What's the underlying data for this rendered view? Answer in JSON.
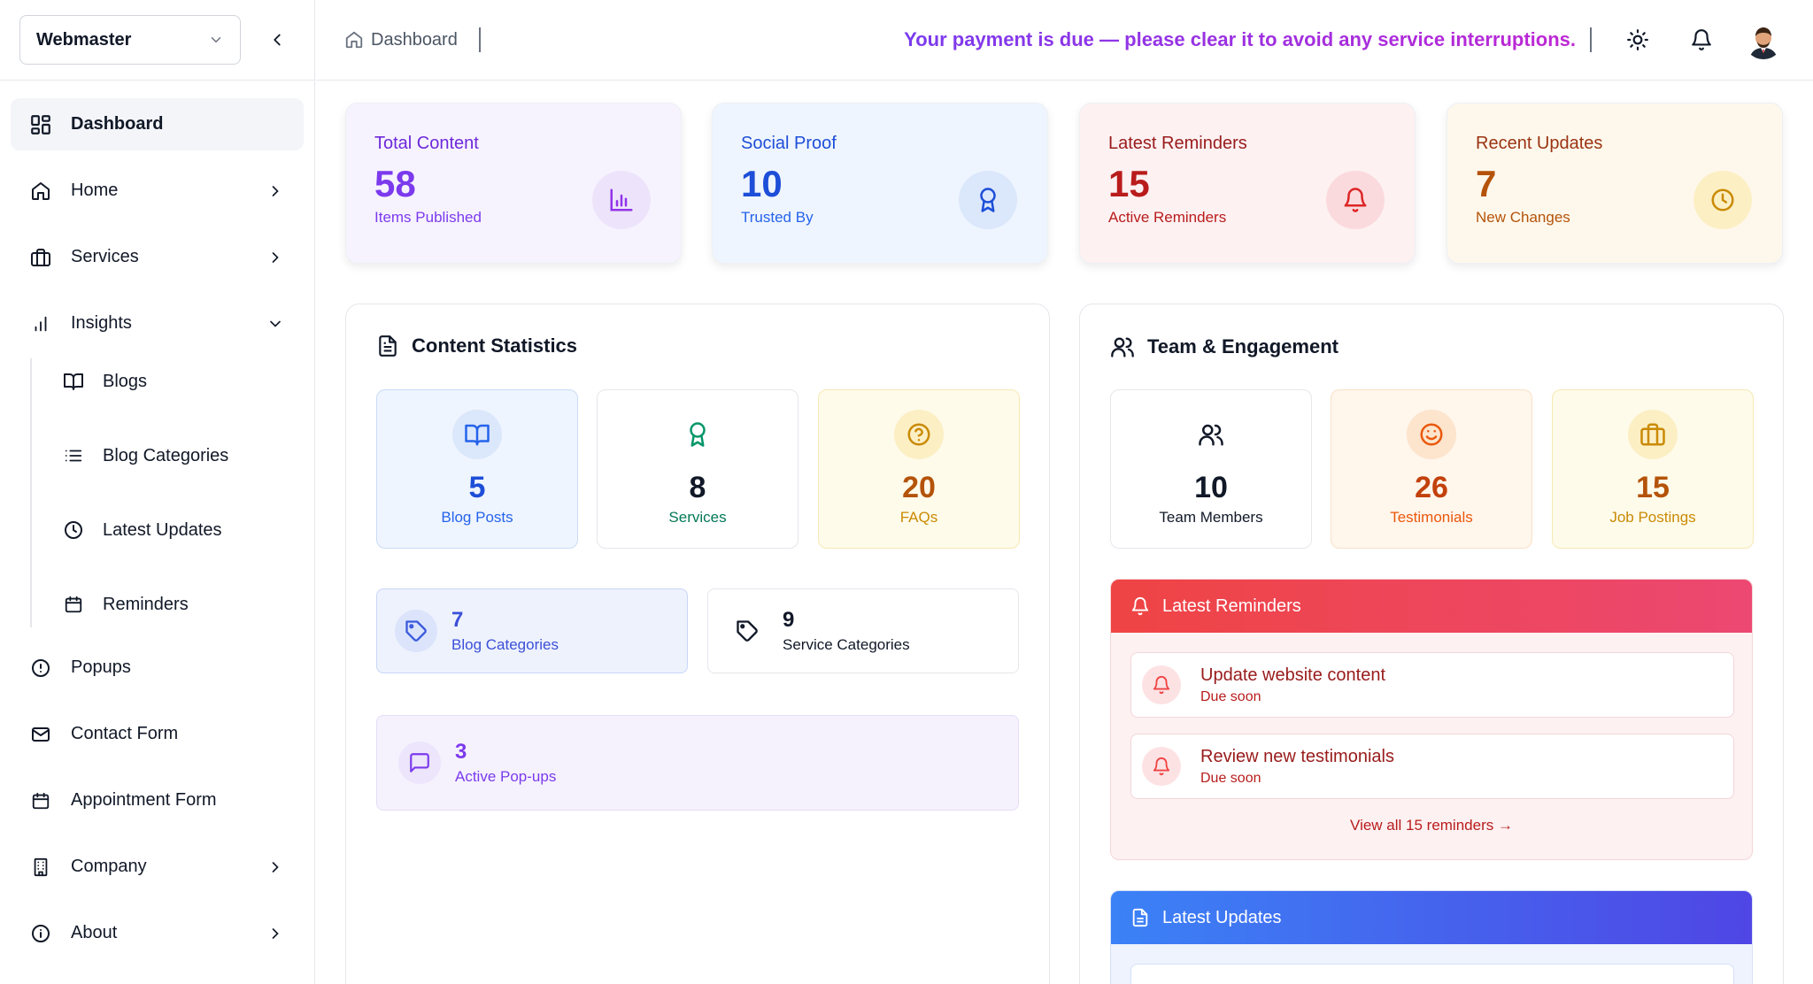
{
  "sidebar": {
    "workspace": "Webmaster",
    "items": [
      {
        "label": "Dashboard",
        "icon": "dashboard-grid-icon"
      },
      {
        "label": "Home",
        "icon": "home-icon"
      },
      {
        "label": "Services",
        "icon": "briefcase-icon"
      },
      {
        "label": "Insights",
        "icon": "bar-chart-icon"
      },
      {
        "label": "Popups",
        "icon": "alert-circle-icon"
      },
      {
        "label": "Contact Form",
        "icon": "mail-icon"
      },
      {
        "label": "Appointment Form",
        "icon": "calendar-icon"
      },
      {
        "label": "Company",
        "icon": "building-icon"
      },
      {
        "label": "About",
        "icon": "info-icon"
      }
    ],
    "insights_sub": [
      {
        "label": "Blogs",
        "icon": "book-icon"
      },
      {
        "label": "Blog Categories",
        "icon": "list-icon"
      },
      {
        "label": "Latest Updates",
        "icon": "clock-icon"
      },
      {
        "label": "Reminders",
        "icon": "calendar-icon"
      }
    ]
  },
  "header": {
    "breadcrumb": "Dashboard",
    "banner": "Your payment is due — please clear it to avoid any service interruptions."
  },
  "stats": [
    {
      "title": "Total Content",
      "value": "58",
      "sub": "Items Published",
      "color": "#7c3aed"
    },
    {
      "title": "Social Proof",
      "value": "10",
      "sub": "Trusted By",
      "color": "#1d4ed8"
    },
    {
      "title": "Latest Reminders",
      "value": "15",
      "sub": "Active Reminders",
      "color": "#b91c1c"
    },
    {
      "title": "Recent Updates",
      "value": "7",
      "sub": "New Changes",
      "color": "#b45309"
    }
  ],
  "content_stats": {
    "title": "Content Statistics",
    "tiles": [
      {
        "value": "5",
        "label": "Blog Posts"
      },
      {
        "value": "8",
        "label": "Services"
      },
      {
        "value": "20",
        "label": "FAQs"
      }
    ],
    "wide": [
      {
        "value": "7",
        "label": "Blog Categories"
      },
      {
        "value": "9",
        "label": "Service Categories"
      },
      {
        "value": "3",
        "label": "Active Pop-ups"
      }
    ]
  },
  "team": {
    "title": "Team & Engagement",
    "tiles": [
      {
        "value": "10",
        "label": "Team Members"
      },
      {
        "value": "26",
        "label": "Testimonials"
      },
      {
        "value": "15",
        "label": "Job Postings"
      }
    ],
    "reminders": {
      "title": "Latest Reminders",
      "items": [
        {
          "title": "Update website content",
          "sub": "Due soon"
        },
        {
          "title": "Review new testimonials",
          "sub": "Due soon"
        }
      ],
      "view_all": "View all 15 reminders →"
    },
    "updates": {
      "title": "Latest Updates"
    }
  }
}
